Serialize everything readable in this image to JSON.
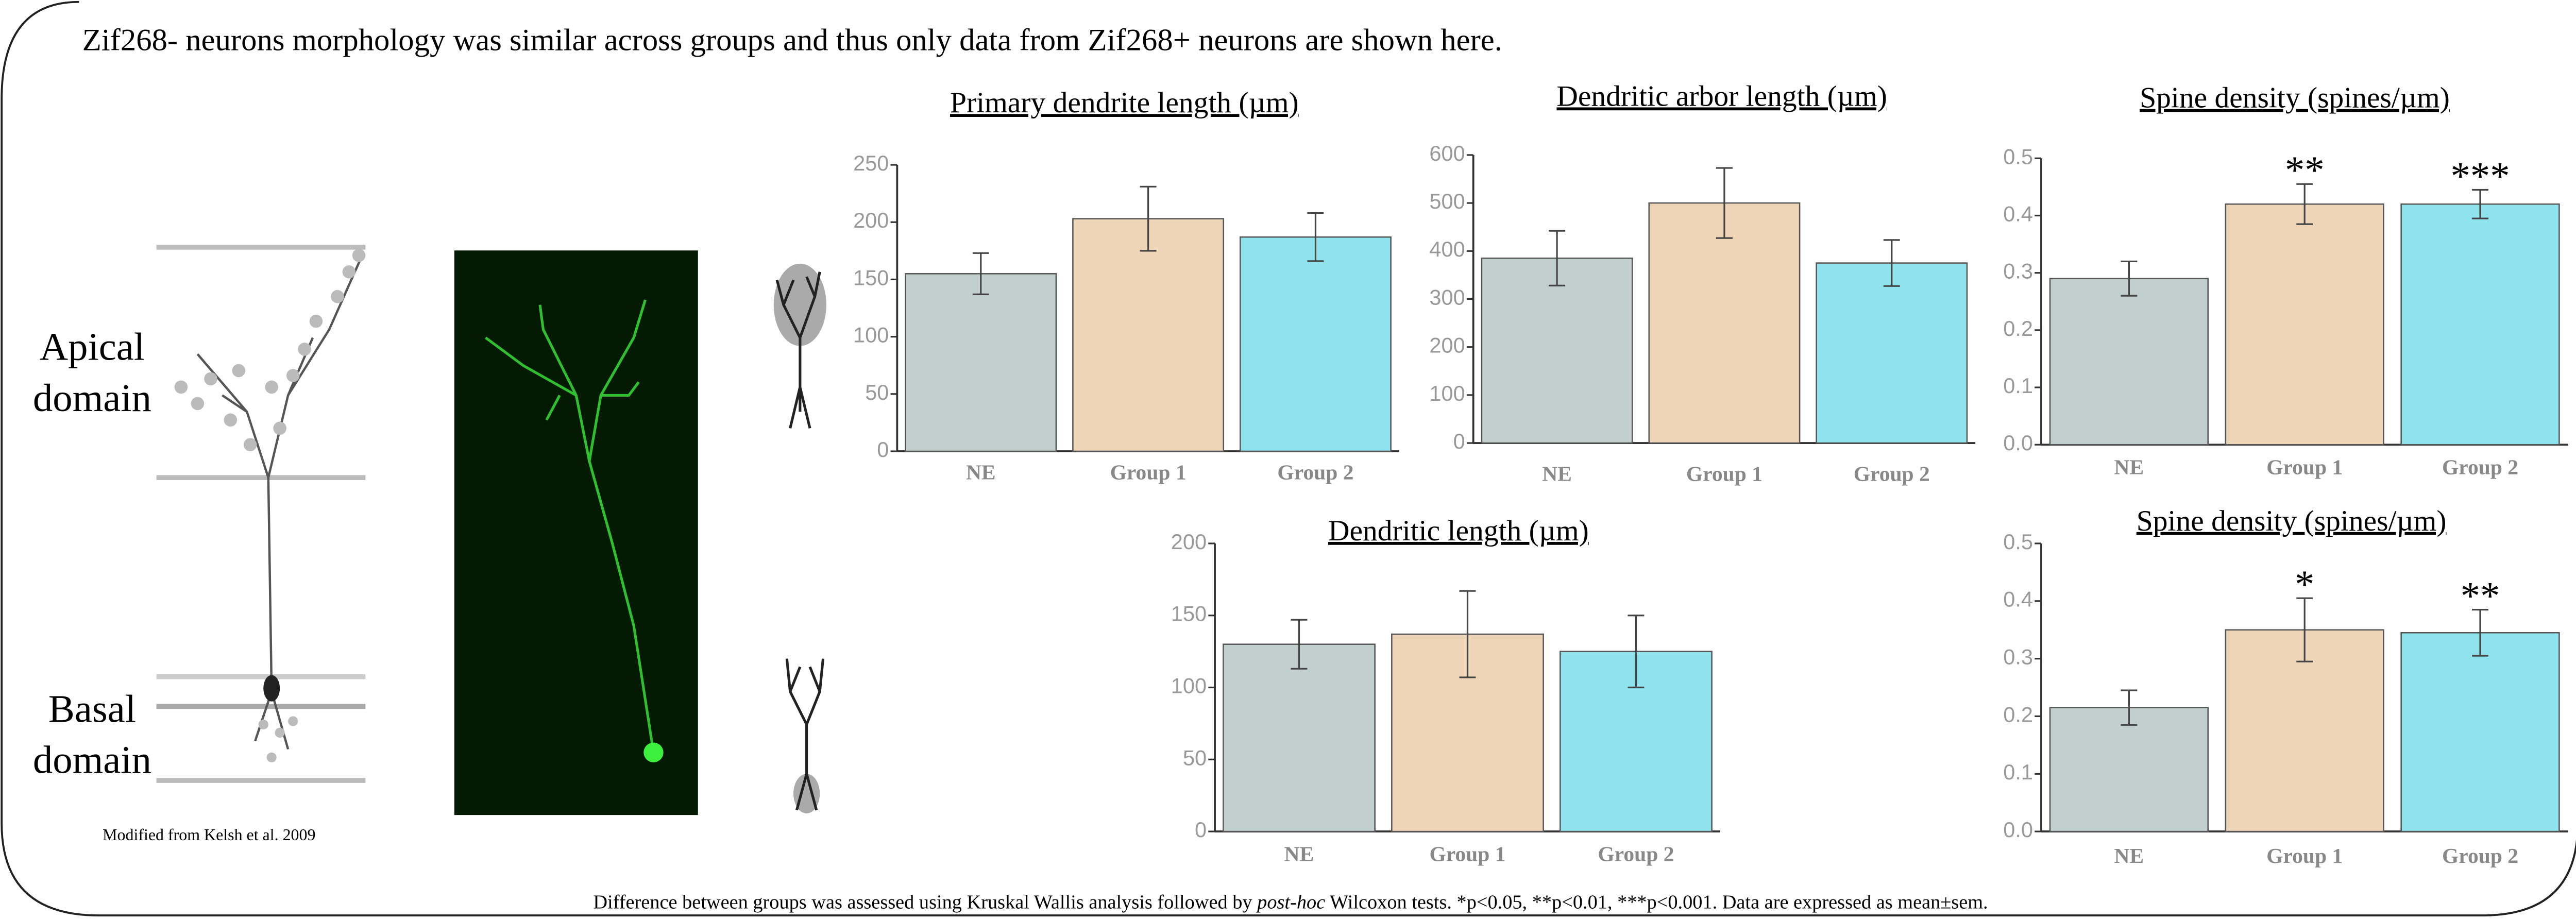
{
  "header": "Zif268- neurons morphology was similar across groups  and thus only data from Zif268+ neurons are shown here.",
  "apical_label": [
    "Apical",
    "domain"
  ],
  "basal_label": [
    "Basal",
    "domain"
  ],
  "credit": "Modified from Kelsh et al. 2009",
  "footnote": [
    "Difference between groups was assessed using Kruskal Wallis analysis followed by ",
    "post-hoc",
    " Wilcoxon tests. *p<0.05, **p<0.01, ***p<0.001. Data are expressed as mean±sem."
  ],
  "chart_data": [
    {
      "type": "bar",
      "title": "Primary dendrite length (µm)",
      "categories": [
        "NE",
        "Group 1",
        "Group 2"
      ],
      "values": [
        155,
        203,
        187
      ],
      "errors": [
        18,
        28,
        21
      ],
      "colors": [
        "#c2cfcf",
        "#efd5b8",
        "#8ee3ec"
      ],
      "ylim": [
        0,
        250
      ],
      "yticks": [
        0,
        50,
        100,
        150,
        200,
        250
      ]
    },
    {
      "type": "bar",
      "title": "Dendritic arbor length (µm)",
      "categories": [
        "NE",
        "Group 1",
        "Group 2"
      ],
      "values": [
        385,
        500,
        375
      ],
      "errors": [
        57,
        73,
        48
      ],
      "colors": [
        "#c2cfcf",
        "#efd5b8",
        "#8ee3ec"
      ],
      "ylim": [
        0,
        600
      ],
      "yticks": [
        0,
        100,
        200,
        300,
        400,
        500,
        600
      ]
    },
    {
      "type": "bar",
      "title": "Spine density (spines/µm)",
      "categories": [
        "NE",
        "Group 1",
        "Group 2"
      ],
      "values": [
        0.29,
        0.42,
        0.42
      ],
      "errors": [
        0.03,
        0.035,
        0.025
      ],
      "colors": [
        "#c2cfcf",
        "#efd5b8",
        "#8ee3ec"
      ],
      "annotations": [
        null,
        "**",
        "***"
      ],
      "ylim": [
        0,
        0.5
      ],
      "yticks": [
        {
          "value": 0,
          "label": "0.0"
        },
        0.1,
        0.2,
        0.3,
        0.4,
        0.5
      ]
    },
    {
      "type": "bar",
      "title": "Dendritic length (µm)",
      "categories": [
        "NE",
        "Group 1",
        "Group 2"
      ],
      "values": [
        130,
        137,
        125
      ],
      "errors": [
        17,
        30,
        25
      ],
      "colors": [
        "#c2cfcf",
        "#efd5b8",
        "#8ee3ec"
      ],
      "ylim": [
        0,
        200
      ],
      "yticks": [
        0,
        50,
        100,
        150,
        200
      ]
    },
    {
      "type": "bar",
      "title": "Spine density (spines/µm)",
      "categories": [
        "NE",
        "Group 1",
        "Group 2"
      ],
      "values": [
        0.215,
        0.35,
        0.345
      ],
      "errors": [
        0.03,
        0.055,
        0.04
      ],
      "colors": [
        "#c2cfcf",
        "#efd5b8",
        "#8ee3ec"
      ],
      "annotations": [
        null,
        "*",
        "**"
      ],
      "ylim": [
        0,
        0.5
      ],
      "yticks": [
        {
          "value": 0,
          "label": "0.0"
        },
        0.1,
        0.2,
        0.3,
        0.4,
        0.5
      ]
    }
  ]
}
